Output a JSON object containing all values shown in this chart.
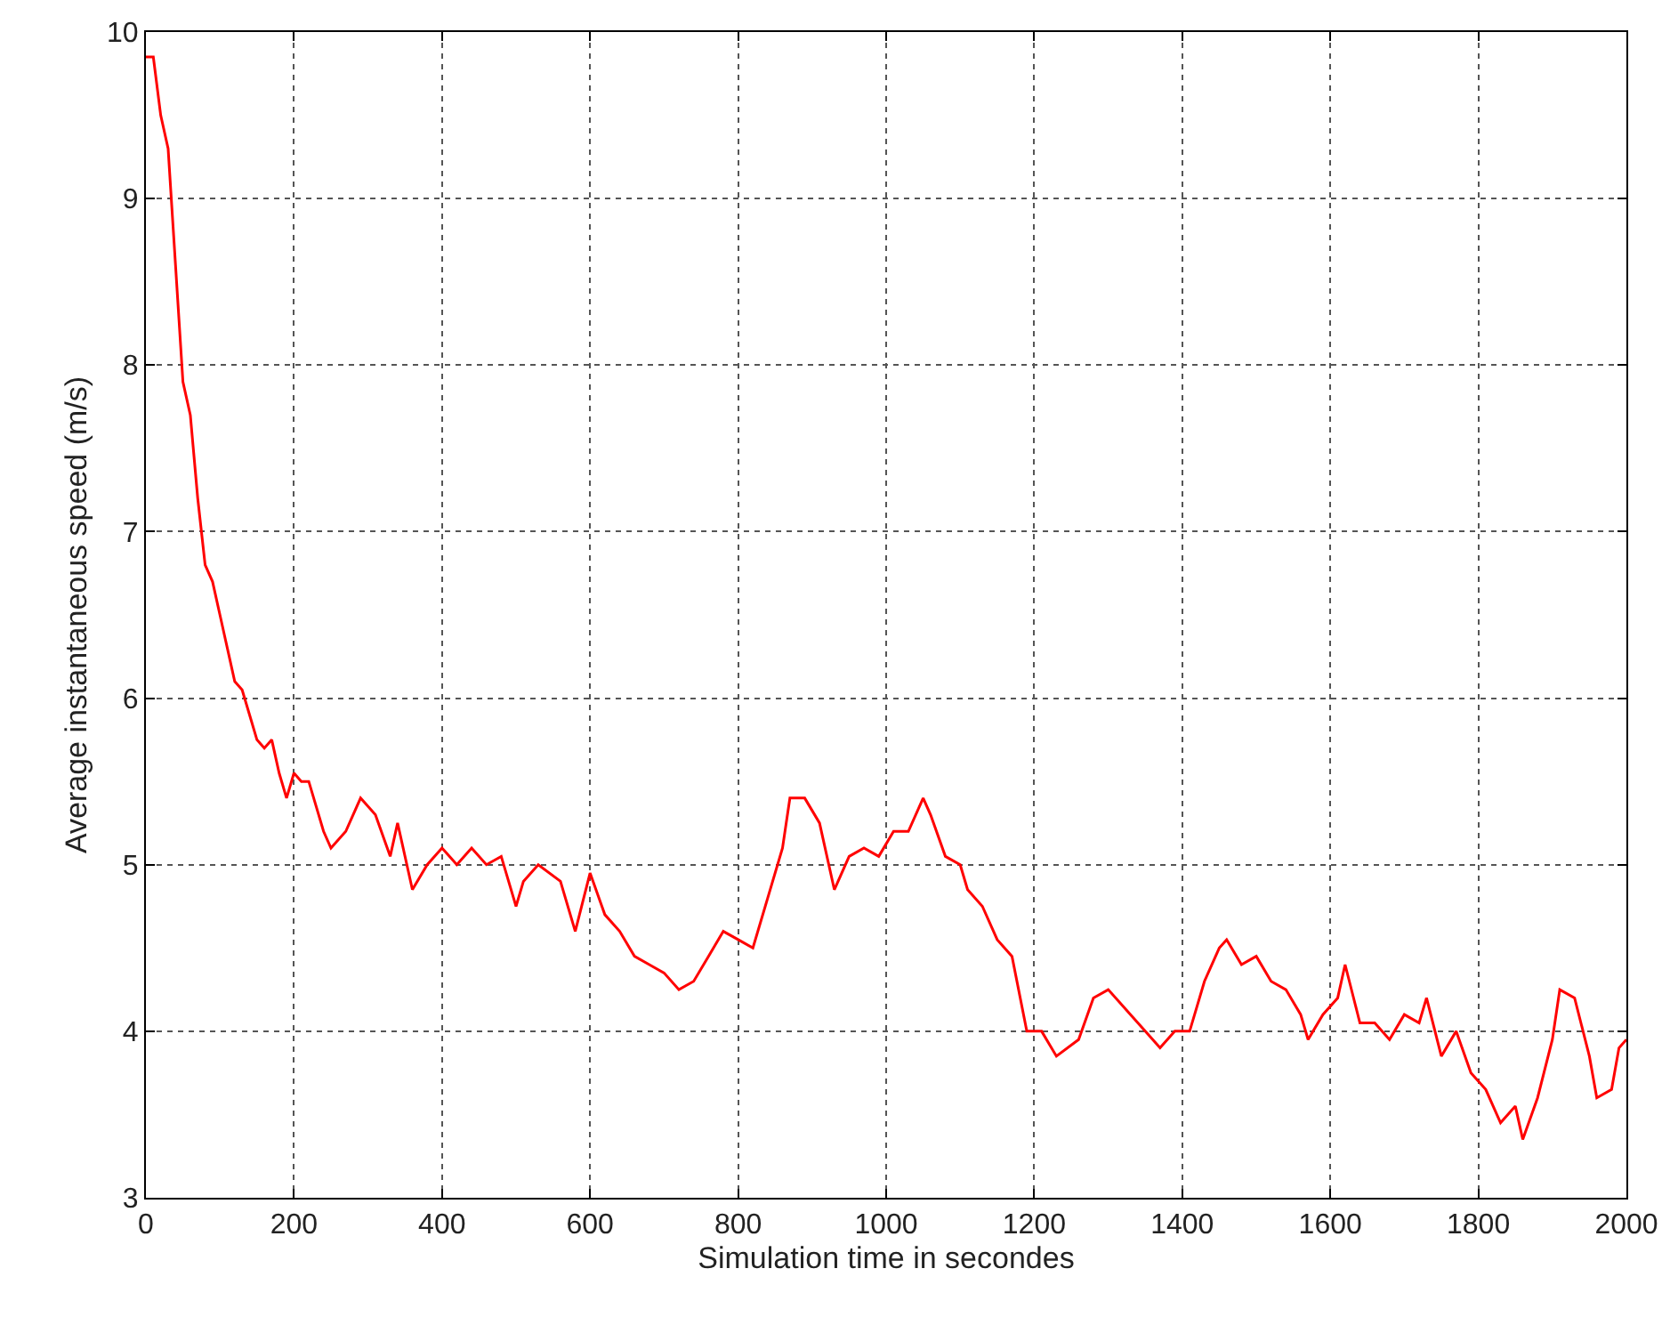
{
  "chart_data": {
    "type": "line",
    "xlabel": "Simulation time in secondes",
    "ylabel": "Average instantaneous speed (m/s)",
    "x": [
      0,
      10,
      20,
      30,
      40,
      50,
      60,
      70,
      80,
      90,
      100,
      110,
      120,
      130,
      140,
      150,
      160,
      170,
      180,
      190,
      200,
      210,
      220,
      240,
      250,
      270,
      290,
      310,
      330,
      340,
      360,
      380,
      400,
      420,
      440,
      460,
      480,
      500,
      510,
      530,
      560,
      580,
      600,
      620,
      640,
      660,
      680,
      700,
      720,
      740,
      760,
      780,
      800,
      820,
      840,
      860,
      870,
      890,
      910,
      930,
      950,
      970,
      990,
      1010,
      1030,
      1050,
      1060,
      1080,
      1100,
      1110,
      1130,
      1150,
      1170,
      1190,
      1210,
      1230,
      1260,
      1280,
      1300,
      1320,
      1350,
      1370,
      1390,
      1410,
      1430,
      1450,
      1460,
      1480,
      1500,
      1520,
      1540,
      1560,
      1570,
      1590,
      1610,
      1620,
      1640,
      1660,
      1680,
      1700,
      1720,
      1730,
      1750,
      1770,
      1790,
      1810,
      1830,
      1850,
      1860,
      1880,
      1900,
      1910,
      1930,
      1950,
      1960,
      1980,
      1990,
      2000
    ],
    "series": [
      {
        "color": "#ff0000",
        "values": [
          9.85,
          9.85,
          9.5,
          9.3,
          8.6,
          7.9,
          7.7,
          7.2,
          6.8,
          6.7,
          6.5,
          6.3,
          6.1,
          6.05,
          5.9,
          5.75,
          5.7,
          5.75,
          5.55,
          5.4,
          5.55,
          5.5,
          5.5,
          5.2,
          5.1,
          5.2,
          5.4,
          5.3,
          5.05,
          5.25,
          4.85,
          5.0,
          5.1,
          5.0,
          5.1,
          5.0,
          5.05,
          4.75,
          4.9,
          5.0,
          4.9,
          4.6,
          4.95,
          4.7,
          4.6,
          4.45,
          4.4,
          4.35,
          4.25,
          4.3,
          4.45,
          4.6,
          4.55,
          4.5,
          4.8,
          5.1,
          5.4,
          5.4,
          5.25,
          4.85,
          5.05,
          5.1,
          5.05,
          5.2,
          5.2,
          5.4,
          5.3,
          5.05,
          5.0,
          4.85,
          4.75,
          4.55,
          4.45,
          4.0,
          4.0,
          3.85,
          3.95,
          4.2,
          4.25,
          4.15,
          4.0,
          3.9,
          4.0,
          4.0,
          4.3,
          4.5,
          4.55,
          4.4,
          4.45,
          4.3,
          4.25,
          4.1,
          3.95,
          4.1,
          4.2,
          4.4,
          4.05,
          4.05,
          3.95,
          4.1,
          4.05,
          4.2,
          3.85,
          4.0,
          3.75,
          3.65,
          3.45,
          3.55,
          3.35,
          3.6,
          3.95,
          4.25,
          4.2,
          3.85,
          3.6,
          3.65,
          3.9,
          3.95
        ]
      }
    ],
    "xlim": [
      0,
      2000
    ],
    "xticks": [
      0,
      200,
      400,
      600,
      800,
      1000,
      1200,
      1400,
      1600,
      1800,
      2000
    ],
    "ylim": [
      3,
      10
    ],
    "yticks": [
      3,
      4,
      5,
      6,
      7,
      8,
      9,
      10
    ],
    "grid": true,
    "line_style": "solid",
    "marker": "none"
  }
}
